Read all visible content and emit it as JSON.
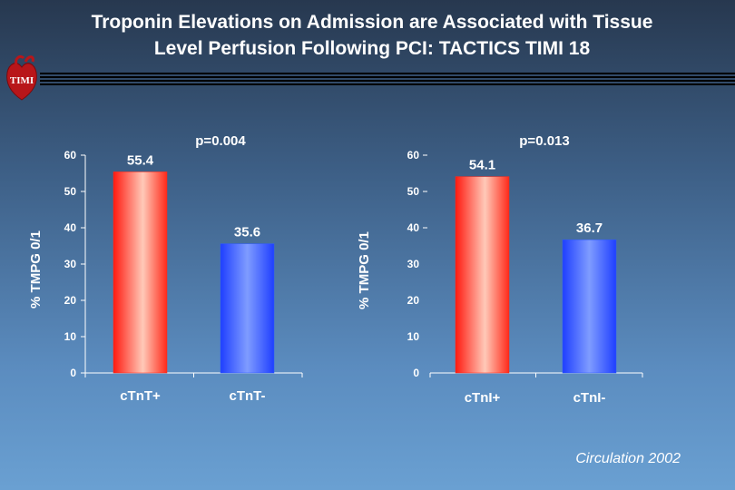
{
  "slide": {
    "title_line1": "Troponin Elevations on Admission are Associated with Tissue",
    "title_line2": "Level Perfusion Following PCI: TACTICS TIMI 18",
    "logo_text": "TIMI",
    "footer": "Circulation 2002"
  },
  "colors": {
    "positive_bar": "#ff2a1a",
    "negative_bar": "#2f5cff",
    "text": "#ffffff"
  },
  "chart_data": [
    {
      "type": "bar",
      "categories": [
        "cTnT+",
        "cTnT-"
      ],
      "values": [
        55.4,
        35.6
      ],
      "value_labels": [
        "55.4",
        "35.6"
      ],
      "annotation": "p=0.004",
      "ylabel": "% TMPG 0/1",
      "ylim": [
        0,
        60
      ],
      "yticks": [
        0,
        10,
        20,
        30,
        40,
        50,
        60
      ],
      "grid": false
    },
    {
      "type": "bar",
      "categories": [
        "cTnI+",
        "cTnI-"
      ],
      "values": [
        54.1,
        36.7
      ],
      "value_labels": [
        "54.1",
        "36.7"
      ],
      "annotation": "p=0.013",
      "ylabel": "% TMPG 0/1",
      "ylim": [
        0,
        60
      ],
      "yticks": [
        0,
        10,
        20,
        30,
        40,
        50,
        60
      ],
      "grid": false
    }
  ]
}
